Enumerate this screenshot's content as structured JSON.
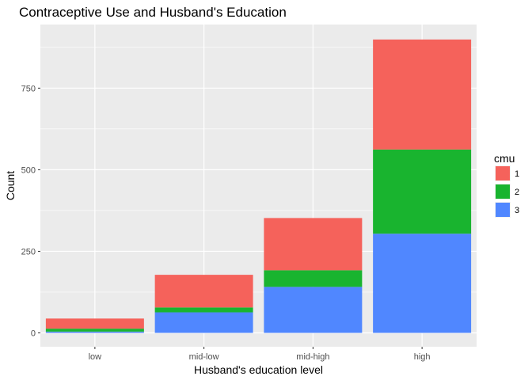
{
  "chart_data": {
    "type": "bar",
    "stacked": true,
    "title": "Contraceptive Use and Husband's Education",
    "xlabel": "Husband's education level",
    "ylabel": "Count",
    "categories": [
      "low",
      "mid-low",
      "mid-high",
      "high"
    ],
    "ylim": [
      0,
      900
    ],
    "yticks": [
      0,
      250,
      500,
      750
    ],
    "grid": true,
    "legend": {
      "title": "cmu",
      "placement": "right"
    },
    "series": [
      {
        "name": "3",
        "color": "#5087FF",
        "values": [
          4,
          63,
          141,
          304
        ]
      },
      {
        "name": "2",
        "color": "#19B42F",
        "values": [
          9,
          15,
          51,
          258
        ]
      },
      {
        "name": "1",
        "color": "#F5625B",
        "values": [
          31,
          100,
          160,
          337
        ]
      }
    ]
  }
}
